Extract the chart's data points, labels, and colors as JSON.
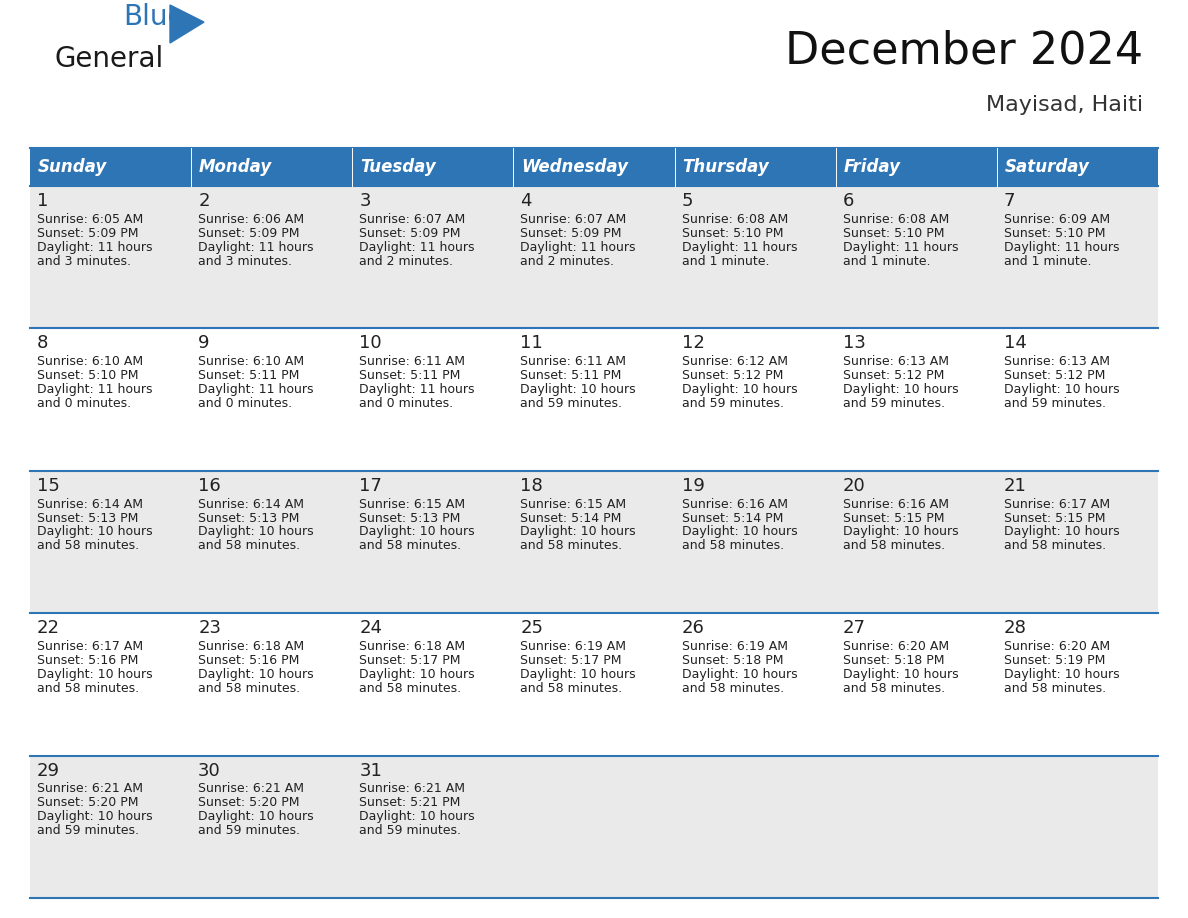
{
  "title": "December 2024",
  "subtitle": "Mayisad, Haiti",
  "header_color": "#2E75B6",
  "header_text_color": "#FFFFFF",
  "day_names": [
    "Sunday",
    "Monday",
    "Tuesday",
    "Wednesday",
    "Thursday",
    "Friday",
    "Saturday"
  ],
  "background_color": "#FFFFFF",
  "row_bg_even": "#EAEAEA",
  "row_bg_odd": "#FFFFFF",
  "grid_color": "#2E75B6",
  "day_num_color": "#222222",
  "text_color": "#222222",
  "days": [
    {
      "day": 1,
      "col": 0,
      "row": 0,
      "sunrise": "6:05 AM",
      "sunset": "5:09 PM",
      "daylight": "11 hours",
      "daylight2": "and 3 minutes."
    },
    {
      "day": 2,
      "col": 1,
      "row": 0,
      "sunrise": "6:06 AM",
      "sunset": "5:09 PM",
      "daylight": "11 hours",
      "daylight2": "and 3 minutes."
    },
    {
      "day": 3,
      "col": 2,
      "row": 0,
      "sunrise": "6:07 AM",
      "sunset": "5:09 PM",
      "daylight": "11 hours",
      "daylight2": "and 2 minutes."
    },
    {
      "day": 4,
      "col": 3,
      "row": 0,
      "sunrise": "6:07 AM",
      "sunset": "5:09 PM",
      "daylight": "11 hours",
      "daylight2": "and 2 minutes."
    },
    {
      "day": 5,
      "col": 4,
      "row": 0,
      "sunrise": "6:08 AM",
      "sunset": "5:10 PM",
      "daylight": "11 hours",
      "daylight2": "and 1 minute."
    },
    {
      "day": 6,
      "col": 5,
      "row": 0,
      "sunrise": "6:08 AM",
      "sunset": "5:10 PM",
      "daylight": "11 hours",
      "daylight2": "and 1 minute."
    },
    {
      "day": 7,
      "col": 6,
      "row": 0,
      "sunrise": "6:09 AM",
      "sunset": "5:10 PM",
      "daylight": "11 hours",
      "daylight2": "and 1 minute."
    },
    {
      "day": 8,
      "col": 0,
      "row": 1,
      "sunrise": "6:10 AM",
      "sunset": "5:10 PM",
      "daylight": "11 hours",
      "daylight2": "and 0 minutes."
    },
    {
      "day": 9,
      "col": 1,
      "row": 1,
      "sunrise": "6:10 AM",
      "sunset": "5:11 PM",
      "daylight": "11 hours",
      "daylight2": "and 0 minutes."
    },
    {
      "day": 10,
      "col": 2,
      "row": 1,
      "sunrise": "6:11 AM",
      "sunset": "5:11 PM",
      "daylight": "11 hours",
      "daylight2": "and 0 minutes."
    },
    {
      "day": 11,
      "col": 3,
      "row": 1,
      "sunrise": "6:11 AM",
      "sunset": "5:11 PM",
      "daylight": "10 hours",
      "daylight2": "and 59 minutes."
    },
    {
      "day": 12,
      "col": 4,
      "row": 1,
      "sunrise": "6:12 AM",
      "sunset": "5:12 PM",
      "daylight": "10 hours",
      "daylight2": "and 59 minutes."
    },
    {
      "day": 13,
      "col": 5,
      "row": 1,
      "sunrise": "6:13 AM",
      "sunset": "5:12 PM",
      "daylight": "10 hours",
      "daylight2": "and 59 minutes."
    },
    {
      "day": 14,
      "col": 6,
      "row": 1,
      "sunrise": "6:13 AM",
      "sunset": "5:12 PM",
      "daylight": "10 hours",
      "daylight2": "and 59 minutes."
    },
    {
      "day": 15,
      "col": 0,
      "row": 2,
      "sunrise": "6:14 AM",
      "sunset": "5:13 PM",
      "daylight": "10 hours",
      "daylight2": "and 58 minutes."
    },
    {
      "day": 16,
      "col": 1,
      "row": 2,
      "sunrise": "6:14 AM",
      "sunset": "5:13 PM",
      "daylight": "10 hours",
      "daylight2": "and 58 minutes."
    },
    {
      "day": 17,
      "col": 2,
      "row": 2,
      "sunrise": "6:15 AM",
      "sunset": "5:13 PM",
      "daylight": "10 hours",
      "daylight2": "and 58 minutes."
    },
    {
      "day": 18,
      "col": 3,
      "row": 2,
      "sunrise": "6:15 AM",
      "sunset": "5:14 PM",
      "daylight": "10 hours",
      "daylight2": "and 58 minutes."
    },
    {
      "day": 19,
      "col": 4,
      "row": 2,
      "sunrise": "6:16 AM",
      "sunset": "5:14 PM",
      "daylight": "10 hours",
      "daylight2": "and 58 minutes."
    },
    {
      "day": 20,
      "col": 5,
      "row": 2,
      "sunrise": "6:16 AM",
      "sunset": "5:15 PM",
      "daylight": "10 hours",
      "daylight2": "and 58 minutes."
    },
    {
      "day": 21,
      "col": 6,
      "row": 2,
      "sunrise": "6:17 AM",
      "sunset": "5:15 PM",
      "daylight": "10 hours",
      "daylight2": "and 58 minutes."
    },
    {
      "day": 22,
      "col": 0,
      "row": 3,
      "sunrise": "6:17 AM",
      "sunset": "5:16 PM",
      "daylight": "10 hours",
      "daylight2": "and 58 minutes."
    },
    {
      "day": 23,
      "col": 1,
      "row": 3,
      "sunrise": "6:18 AM",
      "sunset": "5:16 PM",
      "daylight": "10 hours",
      "daylight2": "and 58 minutes."
    },
    {
      "day": 24,
      "col": 2,
      "row": 3,
      "sunrise": "6:18 AM",
      "sunset": "5:17 PM",
      "daylight": "10 hours",
      "daylight2": "and 58 minutes."
    },
    {
      "day": 25,
      "col": 3,
      "row": 3,
      "sunrise": "6:19 AM",
      "sunset": "5:17 PM",
      "daylight": "10 hours",
      "daylight2": "and 58 minutes."
    },
    {
      "day": 26,
      "col": 4,
      "row": 3,
      "sunrise": "6:19 AM",
      "sunset": "5:18 PM",
      "daylight": "10 hours",
      "daylight2": "and 58 minutes."
    },
    {
      "day": 27,
      "col": 5,
      "row": 3,
      "sunrise": "6:20 AM",
      "sunset": "5:18 PM",
      "daylight": "10 hours",
      "daylight2": "and 58 minutes."
    },
    {
      "day": 28,
      "col": 6,
      "row": 3,
      "sunrise": "6:20 AM",
      "sunset": "5:19 PM",
      "daylight": "10 hours",
      "daylight2": "and 58 minutes."
    },
    {
      "day": 29,
      "col": 0,
      "row": 4,
      "sunrise": "6:21 AM",
      "sunset": "5:20 PM",
      "daylight": "10 hours",
      "daylight2": "and 59 minutes."
    },
    {
      "day": 30,
      "col": 1,
      "row": 4,
      "sunrise": "6:21 AM",
      "sunset": "5:20 PM",
      "daylight": "10 hours",
      "daylight2": "and 59 minutes."
    },
    {
      "day": 31,
      "col": 2,
      "row": 4,
      "sunrise": "6:21 AM",
      "sunset": "5:21 PM",
      "daylight": "10 hours",
      "daylight2": "and 59 minutes."
    }
  ],
  "num_rows": 5,
  "logo_general_color": "#1a1a1a",
  "logo_blue_color": "#2E75B6",
  "fig_width": 11.88,
  "fig_height": 9.18,
  "dpi": 100,
  "title_fontsize": 32,
  "subtitle_fontsize": 16,
  "header_fontsize": 12,
  "daynum_fontsize": 13,
  "cell_fontsize": 9
}
